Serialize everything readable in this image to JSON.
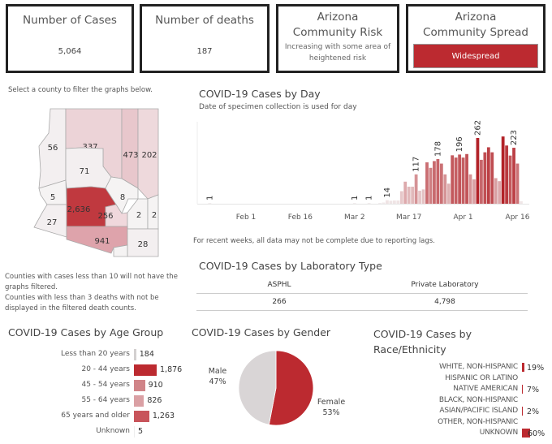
{
  "cards": [
    {
      "title": "Number of Cases",
      "value": "5,064"
    },
    {
      "title": "Number of deaths",
      "value": "187"
    },
    {
      "title": "Arizona Community Risk",
      "subtitle": "Increasing with some area of heightened risk"
    },
    {
      "title": "Arizona Community Spread",
      "status": "Widespread",
      "status_color": "#bc2a30"
    }
  ],
  "map": {
    "instruction": "Select a county to filter the graphs below.",
    "counties": [
      {
        "name": "Mohave",
        "cases": "56"
      },
      {
        "name": "Coconino",
        "cases": "337"
      },
      {
        "name": "Navajo",
        "cases": "473"
      },
      {
        "name": "Apache",
        "cases": "202"
      },
      {
        "name": "Yavapai",
        "cases": "71"
      },
      {
        "name": "La Paz",
        "cases": "5"
      },
      {
        "name": "Yuma",
        "cases": "27"
      },
      {
        "name": "Maricopa",
        "cases": "2,636"
      },
      {
        "name": "Gila",
        "cases": "8"
      },
      {
        "name": "Pinal",
        "cases": "256"
      },
      {
        "name": "Graham",
        "cases": "2"
      },
      {
        "name": "Greenlee",
        "cases": "2"
      },
      {
        "name": "Pima",
        "cases": "941"
      },
      {
        "name": "Cochise",
        "cases": "28"
      },
      {
        "name": "Santa Cruz",
        "cases": ""
      }
    ],
    "note1": "Counties with cases less than 10 will not have the graphs filtered.",
    "note2": "Counties with less than 3 deaths with not be displayed in the filtered death counts."
  },
  "chart_data": [
    {
      "type": "bar",
      "title": "COVID-19 Cases by Day",
      "subtitle": "Date of specimen collection is used for day",
      "x_ticks": [
        "Feb 1",
        "Feb 16",
        "Mar 2",
        "Mar 17",
        "Apr 1",
        "Apr 16"
      ],
      "x": [
        "Jan 22",
        "Mar 2",
        "Mar 6",
        "Mar 9",
        "Mar 10",
        "Mar 11",
        "Mar 12",
        "Mar 13",
        "Mar 14",
        "Mar 15",
        "Mar 16",
        "Mar 17",
        "Mar 18",
        "Mar 19",
        "Mar 20",
        "Mar 21",
        "Mar 22",
        "Mar 23",
        "Mar 24",
        "Mar 25",
        "Mar 26",
        "Mar 27",
        "Mar 28",
        "Mar 29",
        "Mar 30",
        "Mar 31",
        "Apr 1",
        "Apr 2",
        "Apr 3",
        "Apr 4",
        "Apr 5",
        "Apr 6",
        "Apr 7",
        "Apr 8",
        "Apr 9",
        "Apr 10",
        "Apr 11",
        "Apr 12",
        "Apr 13",
        "Apr 14",
        "Apr 15",
        "Apr 16",
        "Apr 17"
      ],
      "values": [
        1,
        1,
        1,
        3,
        5,
        14,
        12,
        13,
        13,
        50,
        88,
        68,
        68,
        117,
        52,
        57,
        165,
        143,
        170,
        178,
        160,
        117,
        80,
        193,
        184,
        196,
        184,
        198,
        117,
        97,
        262,
        175,
        205,
        225,
        205,
        102,
        90,
        268,
        232,
        192,
        223,
        160,
        10
      ],
      "labeled_values": [
        "1",
        "1",
        "1",
        "14",
        "117",
        "178",
        "196",
        "262",
        "223"
      ],
      "footnote": "For recent weeks, all data may not be complete due to reporting lags."
    },
    {
      "type": "table",
      "title": "COVID-19 Cases by Laboratory Type",
      "columns": [
        "ASPHL",
        "Private Laboratory"
      ],
      "values": [
        "266",
        "4,798"
      ]
    },
    {
      "type": "bar",
      "title": "COVID-19 Cases by Age Group",
      "categories": [
        "Less than 20 years",
        "20 - 44 years",
        "45 - 54 years",
        "55 - 64 years",
        "65 years and older",
        "Unknown"
      ],
      "values": [
        184,
        1876,
        910,
        826,
        1263,
        5
      ],
      "labels": [
        "184",
        "1,876",
        "910",
        "826",
        "1,263",
        "5"
      ]
    },
    {
      "type": "pie",
      "title": "COVID-19 Cases by Gender",
      "categories": [
        "Female",
        "Male"
      ],
      "values": [
        53,
        47
      ],
      "labels": [
        "53%",
        "47%"
      ],
      "colors": [
        "#bc2a30",
        "#d9d5d6"
      ]
    },
    {
      "type": "bar",
      "title": "COVID-19 Cases by Race/Ethnicity",
      "categories": [
        "WHITE, NON-HISPANIC",
        "HISPANIC OR LATINO",
        "NATIVE AMERICAN",
        "BLACK, NON-HISPANIC",
        "ASIAN/PACIFIC ISLAND",
        "OTHER, NON-HISPANIC",
        "UNKNOWN"
      ],
      "values": [
        19,
        null,
        7,
        null,
        2,
        null,
        60
      ],
      "labels": [
        "19%",
        "",
        "7%",
        "",
        "2%",
        "",
        "60%"
      ]
    }
  ]
}
